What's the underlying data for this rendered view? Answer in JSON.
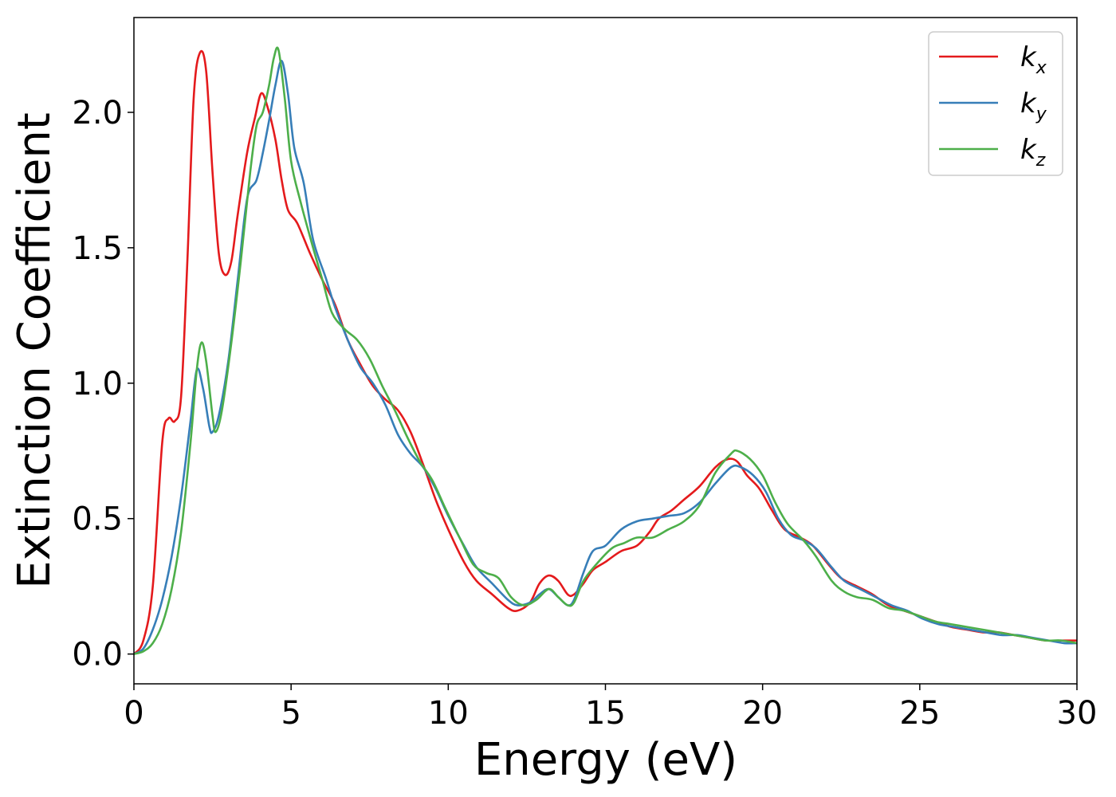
{
  "chart_data": {
    "type": "line",
    "title": "",
    "xlabel": "Energy (eV)",
    "ylabel": "Extinction Coefficient",
    "xlim": [
      0,
      30
    ],
    "ylim": [
      -0.11,
      2.35
    ],
    "xticks": [
      0,
      5,
      10,
      15,
      20,
      25,
      30
    ],
    "xtick_labels": [
      "0",
      "5",
      "10",
      "15",
      "20",
      "25",
      "30"
    ],
    "yticks": [
      0.0,
      0.5,
      1.0,
      1.5,
      2.0
    ],
    "ytick_labels": [
      "0.0",
      "0.5",
      "1.0",
      "1.5",
      "2.0"
    ],
    "grid": false,
    "legend_position": "top-right",
    "series": [
      {
        "name": "k_x",
        "label_base": "k",
        "label_sub": "x",
        "color": "#e41a1c",
        "points": [
          [
            0,
            0.0
          ],
          [
            0.3,
            0.05
          ],
          [
            0.6,
            0.25
          ],
          [
            0.9,
            0.78
          ],
          [
            1.1,
            0.87
          ],
          [
            1.3,
            0.86
          ],
          [
            1.5,
            0.95
          ],
          [
            1.7,
            1.45
          ],
          [
            1.9,
            2.05
          ],
          [
            2.1,
            2.22
          ],
          [
            2.3,
            2.15
          ],
          [
            2.5,
            1.78
          ],
          [
            2.7,
            1.48
          ],
          [
            2.9,
            1.4
          ],
          [
            3.1,
            1.45
          ],
          [
            3.3,
            1.62
          ],
          [
            3.6,
            1.85
          ],
          [
            3.85,
            1.98
          ],
          [
            4.05,
            2.07
          ],
          [
            4.25,
            2.02
          ],
          [
            4.5,
            1.9
          ],
          [
            4.7,
            1.75
          ],
          [
            4.9,
            1.64
          ],
          [
            5.2,
            1.59
          ],
          [
            5.6,
            1.48
          ],
          [
            6.0,
            1.38
          ],
          [
            6.4,
            1.29
          ],
          [
            6.8,
            1.16
          ],
          [
            7.2,
            1.07
          ],
          [
            7.6,
            0.99
          ],
          [
            8.0,
            0.94
          ],
          [
            8.4,
            0.9
          ],
          [
            8.8,
            0.82
          ],
          [
            9.2,
            0.7
          ],
          [
            9.6,
            0.57
          ],
          [
            10.0,
            0.46
          ],
          [
            10.5,
            0.34
          ],
          [
            10.9,
            0.27
          ],
          [
            11.4,
            0.22
          ],
          [
            11.9,
            0.17
          ],
          [
            12.2,
            0.16
          ],
          [
            12.6,
            0.19
          ],
          [
            12.9,
            0.26
          ],
          [
            13.2,
            0.29
          ],
          [
            13.5,
            0.27
          ],
          [
            13.8,
            0.22
          ],
          [
            14.0,
            0.22
          ],
          [
            14.3,
            0.26
          ],
          [
            14.6,
            0.31
          ],
          [
            15.0,
            0.34
          ],
          [
            15.5,
            0.38
          ],
          [
            16.0,
            0.4
          ],
          [
            16.4,
            0.45
          ],
          [
            16.7,
            0.5
          ],
          [
            17.1,
            0.53
          ],
          [
            17.5,
            0.57
          ],
          [
            18.0,
            0.62
          ],
          [
            18.5,
            0.69
          ],
          [
            18.9,
            0.72
          ],
          [
            19.2,
            0.71
          ],
          [
            19.5,
            0.66
          ],
          [
            19.9,
            0.61
          ],
          [
            20.3,
            0.53
          ],
          [
            20.7,
            0.46
          ],
          [
            21.2,
            0.43
          ],
          [
            21.6,
            0.4
          ],
          [
            22.1,
            0.33
          ],
          [
            22.5,
            0.28
          ],
          [
            23.0,
            0.25
          ],
          [
            23.5,
            0.22
          ],
          [
            24.0,
            0.18
          ],
          [
            24.5,
            0.16
          ],
          [
            25.0,
            0.14
          ],
          [
            25.5,
            0.12
          ],
          [
            26.0,
            0.1
          ],
          [
            26.5,
            0.09
          ],
          [
            27.0,
            0.08
          ],
          [
            27.5,
            0.08
          ],
          [
            28.0,
            0.07
          ],
          [
            28.5,
            0.06
          ],
          [
            29.0,
            0.05
          ],
          [
            29.5,
            0.05
          ],
          [
            30.0,
            0.05
          ]
        ]
      },
      {
        "name": "k_y",
        "label_base": "k",
        "label_sub": "y",
        "color": "#377eb8",
        "points": [
          [
            0,
            0.0
          ],
          [
            0.3,
            0.02
          ],
          [
            0.6,
            0.09
          ],
          [
            0.9,
            0.2
          ],
          [
            1.2,
            0.36
          ],
          [
            1.5,
            0.58
          ],
          [
            1.8,
            0.86
          ],
          [
            2.0,
            1.05
          ],
          [
            2.2,
            0.98
          ],
          [
            2.4,
            0.84
          ],
          [
            2.5,
            0.82
          ],
          [
            2.7,
            0.88
          ],
          [
            3.0,
            1.08
          ],
          [
            3.3,
            1.38
          ],
          [
            3.6,
            1.68
          ],
          [
            3.9,
            1.75
          ],
          [
            4.1,
            1.85
          ],
          [
            4.3,
            1.97
          ],
          [
            4.5,
            2.1
          ],
          [
            4.7,
            2.19
          ],
          [
            4.9,
            2.07
          ],
          [
            5.1,
            1.87
          ],
          [
            5.4,
            1.74
          ],
          [
            5.7,
            1.53
          ],
          [
            6.1,
            1.39
          ],
          [
            6.4,
            1.28
          ],
          [
            6.8,
            1.16
          ],
          [
            7.2,
            1.06
          ],
          [
            7.6,
            1.0
          ],
          [
            8.0,
            0.92
          ],
          [
            8.4,
            0.81
          ],
          [
            8.8,
            0.74
          ],
          [
            9.2,
            0.69
          ],
          [
            9.6,
            0.61
          ],
          [
            10.0,
            0.51
          ],
          [
            10.5,
            0.4
          ],
          [
            10.9,
            0.32
          ],
          [
            11.4,
            0.26
          ],
          [
            11.9,
            0.2
          ],
          [
            12.2,
            0.18
          ],
          [
            12.6,
            0.19
          ],
          [
            12.9,
            0.22
          ],
          [
            13.2,
            0.24
          ],
          [
            13.5,
            0.21
          ],
          [
            13.8,
            0.18
          ],
          [
            14.0,
            0.2
          ],
          [
            14.3,
            0.3
          ],
          [
            14.6,
            0.38
          ],
          [
            15.0,
            0.4
          ],
          [
            15.5,
            0.46
          ],
          [
            16.0,
            0.49
          ],
          [
            16.5,
            0.5
          ],
          [
            17.0,
            0.51
          ],
          [
            17.5,
            0.52
          ],
          [
            18.0,
            0.56
          ],
          [
            18.5,
            0.63
          ],
          [
            19.0,
            0.69
          ],
          [
            19.3,
            0.69
          ],
          [
            19.7,
            0.66
          ],
          [
            20.1,
            0.6
          ],
          [
            20.5,
            0.5
          ],
          [
            20.9,
            0.44
          ],
          [
            21.3,
            0.42
          ],
          [
            21.7,
            0.39
          ],
          [
            22.2,
            0.32
          ],
          [
            22.6,
            0.27
          ],
          [
            23.1,
            0.24
          ],
          [
            23.6,
            0.21
          ],
          [
            24.1,
            0.18
          ],
          [
            24.6,
            0.16
          ],
          [
            25.1,
            0.13
          ],
          [
            25.6,
            0.11
          ],
          [
            26.1,
            0.1
          ],
          [
            26.6,
            0.09
          ],
          [
            27.1,
            0.08
          ],
          [
            27.6,
            0.07
          ],
          [
            28.1,
            0.07
          ],
          [
            28.6,
            0.06
          ],
          [
            29.1,
            0.05
          ],
          [
            29.6,
            0.04
          ],
          [
            30.0,
            0.04
          ]
        ]
      },
      {
        "name": "k_z",
        "label_base": "k",
        "label_sub": "z",
        "color": "#4daf4a",
        "points": [
          [
            0,
            0.0
          ],
          [
            0.3,
            0.01
          ],
          [
            0.6,
            0.04
          ],
          [
            0.9,
            0.11
          ],
          [
            1.2,
            0.24
          ],
          [
            1.5,
            0.45
          ],
          [
            1.8,
            0.78
          ],
          [
            2.0,
            1.05
          ],
          [
            2.15,
            1.15
          ],
          [
            2.3,
            1.08
          ],
          [
            2.5,
            0.88
          ],
          [
            2.6,
            0.82
          ],
          [
            2.8,
            0.9
          ],
          [
            3.1,
            1.15
          ],
          [
            3.4,
            1.45
          ],
          [
            3.7,
            1.78
          ],
          [
            3.9,
            1.95
          ],
          [
            4.1,
            2.0
          ],
          [
            4.3,
            2.1
          ],
          [
            4.45,
            2.2
          ],
          [
            4.6,
            2.23
          ],
          [
            4.8,
            2.05
          ],
          [
            5.0,
            1.82
          ],
          [
            5.3,
            1.67
          ],
          [
            5.7,
            1.5
          ],
          [
            6.0,
            1.38
          ],
          [
            6.3,
            1.26
          ],
          [
            6.7,
            1.2
          ],
          [
            7.1,
            1.16
          ],
          [
            7.5,
            1.09
          ],
          [
            7.9,
            0.99
          ],
          [
            8.3,
            0.9
          ],
          [
            8.7,
            0.8
          ],
          [
            9.1,
            0.71
          ],
          [
            9.5,
            0.64
          ],
          [
            9.9,
            0.54
          ],
          [
            10.4,
            0.42
          ],
          [
            10.8,
            0.33
          ],
          [
            11.2,
            0.3
          ],
          [
            11.6,
            0.28
          ],
          [
            12.0,
            0.21
          ],
          [
            12.4,
            0.18
          ],
          [
            12.8,
            0.2
          ],
          [
            13.2,
            0.24
          ],
          [
            13.5,
            0.21
          ],
          [
            13.8,
            0.18
          ],
          [
            14.0,
            0.19
          ],
          [
            14.3,
            0.27
          ],
          [
            14.7,
            0.33
          ],
          [
            15.2,
            0.39
          ],
          [
            15.6,
            0.41
          ],
          [
            16.0,
            0.43
          ],
          [
            16.5,
            0.43
          ],
          [
            17.0,
            0.46
          ],
          [
            17.5,
            0.49
          ],
          [
            18.0,
            0.55
          ],
          [
            18.5,
            0.67
          ],
          [
            19.0,
            0.74
          ],
          [
            19.2,
            0.75
          ],
          [
            19.6,
            0.72
          ],
          [
            20.0,
            0.66
          ],
          [
            20.4,
            0.56
          ],
          [
            20.8,
            0.48
          ],
          [
            21.3,
            0.42
          ],
          [
            21.7,
            0.36
          ],
          [
            22.2,
            0.27
          ],
          [
            22.6,
            0.23
          ],
          [
            23.0,
            0.21
          ],
          [
            23.5,
            0.2
          ],
          [
            24.0,
            0.17
          ],
          [
            24.5,
            0.16
          ],
          [
            25.0,
            0.14
          ],
          [
            25.5,
            0.12
          ],
          [
            26.0,
            0.11
          ],
          [
            26.5,
            0.1
          ],
          [
            27.0,
            0.09
          ],
          [
            27.5,
            0.08
          ],
          [
            28.0,
            0.07
          ],
          [
            28.5,
            0.06
          ],
          [
            29.0,
            0.05
          ],
          [
            29.5,
            0.05
          ],
          [
            30.0,
            0.04
          ]
        ]
      }
    ]
  }
}
